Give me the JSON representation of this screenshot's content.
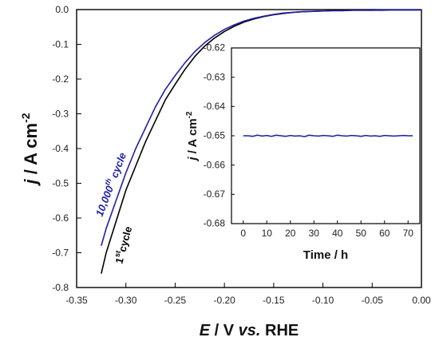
{
  "chart_data": [
    {
      "type": "line",
      "title": "",
      "xlabel": {
        "sym": "E",
        "mid": " / V ",
        "vs": "vs.",
        "end": " RHE"
      },
      "ylabel": {
        "sym": "j",
        "mid": " / A cm",
        "sup": "-2"
      },
      "xlim": [
        -0.35,
        0.0
      ],
      "ylim": [
        -0.8,
        0.0
      ],
      "x_ticks": [
        -0.35,
        -0.3,
        -0.25,
        -0.2,
        -0.15,
        -0.1,
        -0.05,
        0.0
      ],
      "x_tick_labels": [
        "-0.35",
        "-0.30",
        "-0.25",
        "-0.20",
        "-0.15",
        "-0.10",
        "-0.05",
        "0.00"
      ],
      "y_ticks": [
        0.0,
        -0.1,
        -0.2,
        -0.3,
        -0.4,
        -0.5,
        -0.6,
        -0.7,
        -0.8
      ],
      "y_tick_labels": [
        "0.0",
        "-0.1",
        "-0.2",
        "-0.3",
        "-0.4",
        "-0.5",
        "-0.6",
        "-0.7",
        "-0.8"
      ],
      "grid": false,
      "series": [
        {
          "color": "#000000",
          "x": [
            -0.325,
            -0.32,
            -0.31,
            -0.3,
            -0.29,
            -0.28,
            -0.27,
            -0.26,
            -0.25,
            -0.24,
            -0.23,
            -0.22,
            -0.21,
            -0.2,
            -0.19,
            -0.18,
            -0.17,
            -0.16,
            -0.15,
            -0.14,
            -0.13,
            -0.12,
            -0.11,
            -0.1,
            -0.09,
            -0.08,
            -0.07,
            -0.06,
            -0.05,
            -0.04,
            -0.03,
            -0.02,
            -0.01,
            0.0
          ],
          "values": [
            -0.76,
            -0.7,
            -0.61,
            -0.52,
            -0.45,
            -0.38,
            -0.32,
            -0.26,
            -0.215,
            -0.172,
            -0.135,
            -0.105,
            -0.082,
            -0.063,
            -0.048,
            -0.036,
            -0.027,
            -0.02,
            -0.015,
            -0.011,
            -0.008,
            -0.006,
            -0.005,
            -0.004,
            -0.003,
            -0.003,
            -0.002,
            -0.002,
            -0.002,
            -0.002,
            -0.001,
            -0.001,
            -0.001,
            -0.001
          ]
        },
        {
          "color": "#1f1fa8",
          "x": [
            -0.325,
            -0.32,
            -0.31,
            -0.3,
            -0.29,
            -0.28,
            -0.27,
            -0.26,
            -0.25,
            -0.24,
            -0.23,
            -0.22,
            -0.21,
            -0.2,
            -0.19,
            -0.18,
            -0.17,
            -0.16,
            -0.15,
            -0.14,
            -0.13,
            -0.12,
            -0.11,
            -0.1,
            -0.09,
            -0.08,
            -0.07,
            -0.06,
            -0.05,
            -0.04,
            -0.03,
            -0.02,
            -0.01,
            0.0
          ],
          "values": [
            -0.68,
            -0.63,
            -0.55,
            -0.47,
            -0.4,
            -0.34,
            -0.28,
            -0.23,
            -0.19,
            -0.153,
            -0.121,
            -0.095,
            -0.074,
            -0.057,
            -0.044,
            -0.033,
            -0.025,
            -0.019,
            -0.014,
            -0.01,
            -0.008,
            -0.006,
            -0.005,
            -0.004,
            -0.003,
            -0.003,
            -0.002,
            -0.002,
            -0.002,
            -0.001,
            -0.001,
            -0.001,
            -0.001,
            -0.001
          ]
        }
      ],
      "annotations": [
        {
          "main": "10,000",
          "sup": "th",
          "rest": " cycle",
          "color": "#1f1fa8"
        },
        {
          "main": "1",
          "sup": "st",
          "rest": "cycle",
          "color": "#000000"
        }
      ]
    },
    {
      "type": "line",
      "title": "",
      "xlabel": "Time / h",
      "ylabel": {
        "sym": "j",
        "mid": " / A cm",
        "sup": "-2"
      },
      "xlim": [
        -5,
        75
      ],
      "ylim": [
        -0.68,
        -0.62
      ],
      "x_ticks": [
        0,
        10,
        20,
        30,
        40,
        50,
        60,
        70
      ],
      "x_tick_labels": [
        "0",
        "10",
        "20",
        "30",
        "40",
        "50",
        "60",
        "70"
      ],
      "y_ticks": [
        -0.62,
        -0.63,
        -0.64,
        -0.65,
        -0.66,
        -0.67,
        -0.68
      ],
      "y_tick_labels": [
        "-0.62",
        "-0.63",
        "-0.64",
        "-0.65",
        "-0.66",
        "-0.67",
        "-0.68"
      ],
      "grid": false,
      "series": [
        {
          "color": "#1f1fa8",
          "x": [
            0,
            2,
            4,
            6,
            8,
            10,
            12,
            14,
            16,
            18,
            20,
            22,
            24,
            26,
            28,
            30,
            32,
            34,
            36,
            38,
            40,
            42,
            44,
            46,
            48,
            50,
            52,
            54,
            56,
            58,
            60,
            62,
            64,
            66,
            68,
            70,
            72
          ],
          "values": [
            -0.65,
            -0.65,
            -0.6502,
            -0.6498,
            -0.6501,
            -0.6499,
            -0.6502,
            -0.6498,
            -0.65,
            -0.6502,
            -0.6499,
            -0.6501,
            -0.65,
            -0.6503,
            -0.6498,
            -0.65,
            -0.6501,
            -0.6499,
            -0.65,
            -0.6502,
            -0.6498,
            -0.65,
            -0.6501,
            -0.6499,
            -0.65,
            -0.6502,
            -0.6499,
            -0.6501,
            -0.65,
            -0.6502,
            -0.6499,
            -0.65,
            -0.6501,
            -0.65,
            -0.6499,
            -0.65,
            -0.65
          ]
        }
      ]
    }
  ]
}
